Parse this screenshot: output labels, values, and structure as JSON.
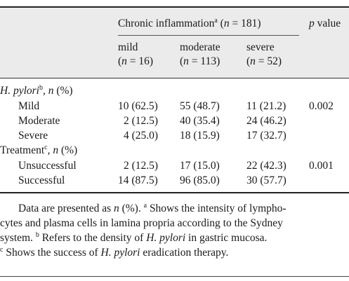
{
  "header": {
    "group_title_pre": "Chronic inflammation",
    "group_title_sup": "a",
    "group_title_paren_open": "(",
    "group_title_n": "n",
    "group_title_count": " = 181)",
    "p_label_p": "p",
    "p_label_rest": " value",
    "columns": [
      {
        "label": "mild",
        "n_prefix": "(",
        "n_var": "n",
        "n_rest": " = 16)"
      },
      {
        "label": "moderate",
        "n_prefix": "(",
        "n_var": "n",
        "n_rest": " = 113)"
      },
      {
        "label": "severe",
        "n_prefix": "(",
        "n_var": "n",
        "n_rest": " = 52)"
      }
    ]
  },
  "sections": [
    {
      "title_italic": "H. pylori",
      "title_sup": "b",
      "title_rest_pre": ", ",
      "title_n": "n",
      "title_rest": " (%)",
      "rows": [
        {
          "label": "Mild",
          "values": [
            "10 (62.5)",
            "55 (48.7)",
            "11 (21.2)"
          ],
          "p": "0.002"
        },
        {
          "label": "Moderate",
          "values": [
            "2 (12.5)",
            "40 (35.4)",
            "24 (46.2)"
          ],
          "p": ""
        },
        {
          "label": "Severe",
          "values": [
            "4 (25.0)",
            "18 (15.9)",
            "17 (32.7)"
          ],
          "p": ""
        }
      ]
    },
    {
      "title_plain": "Treatment",
      "title_sup": "c",
      "title_rest_pre": ", ",
      "title_n": "n",
      "title_rest": " (%)",
      "rows": [
        {
          "label": "Unsuccessful",
          "values": [
            "2 (12.5)",
            "17 (15.0)",
            "22 (42.3)"
          ],
          "p": "0.001"
        },
        {
          "label": "Successful",
          "values": [
            "14 (87.5)",
            "96 (85.0)",
            "30 (57.7)"
          ],
          "p": ""
        }
      ]
    }
  ],
  "footnote": {
    "l1_a": "Data are presented as ",
    "l1_n": "n",
    "l1_b": " (%). ",
    "l1_sup": "a",
    "l1_c": " Shows the intensity of lympho-",
    "l2": "cytes and plasma cells in lamina propria according to the Sydney",
    "l3_a": "system. ",
    "l3_sup": "b",
    "l3_b": " Refers to the density of ",
    "l3_i": "H. pylori",
    "l3_c": " in gastric mucosa.",
    "l4_sup": "c",
    "l4_a": " Shows the success of ",
    "l4_i": "H. pylori",
    "l4_b": " eradication therapy."
  }
}
